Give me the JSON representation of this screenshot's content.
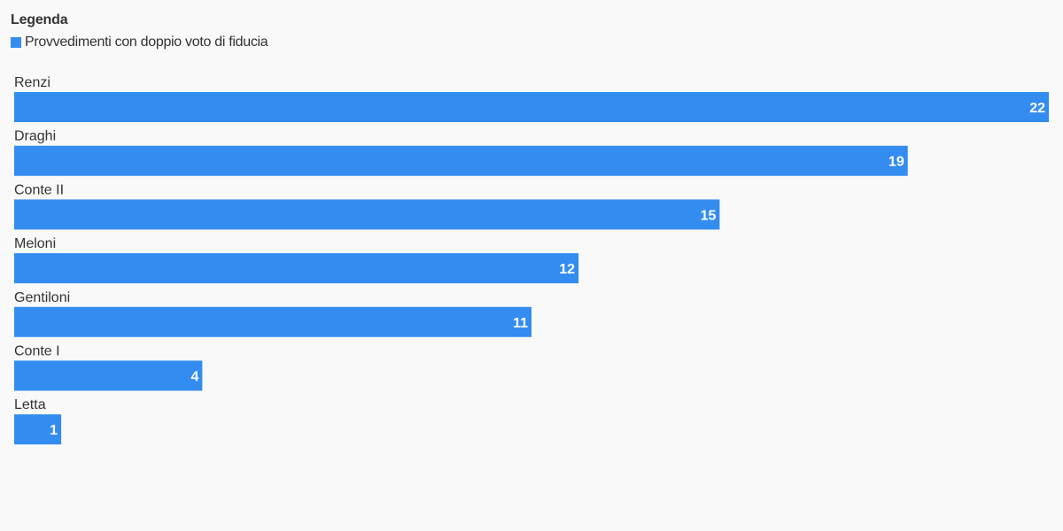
{
  "legend": {
    "title": "Legenda",
    "label": "Provvedimenti con doppio voto di fiducia"
  },
  "colors": {
    "bar": "#338cf0",
    "label_text": "#333333",
    "value_text": "#ffffff"
  },
  "chart_data": {
    "type": "bar",
    "orientation": "horizontal",
    "categories": [
      "Renzi",
      "Draghi",
      "Conte II",
      "Meloni",
      "Gentiloni",
      "Conte I",
      "Letta"
    ],
    "series": [
      {
        "name": "Provvedimenti con doppio voto di fiducia",
        "values": [
          22,
          19,
          15,
          12,
          11,
          4,
          1
        ]
      }
    ],
    "xlim": [
      0,
      22
    ],
    "grid": false,
    "legend_position": "top-left"
  }
}
